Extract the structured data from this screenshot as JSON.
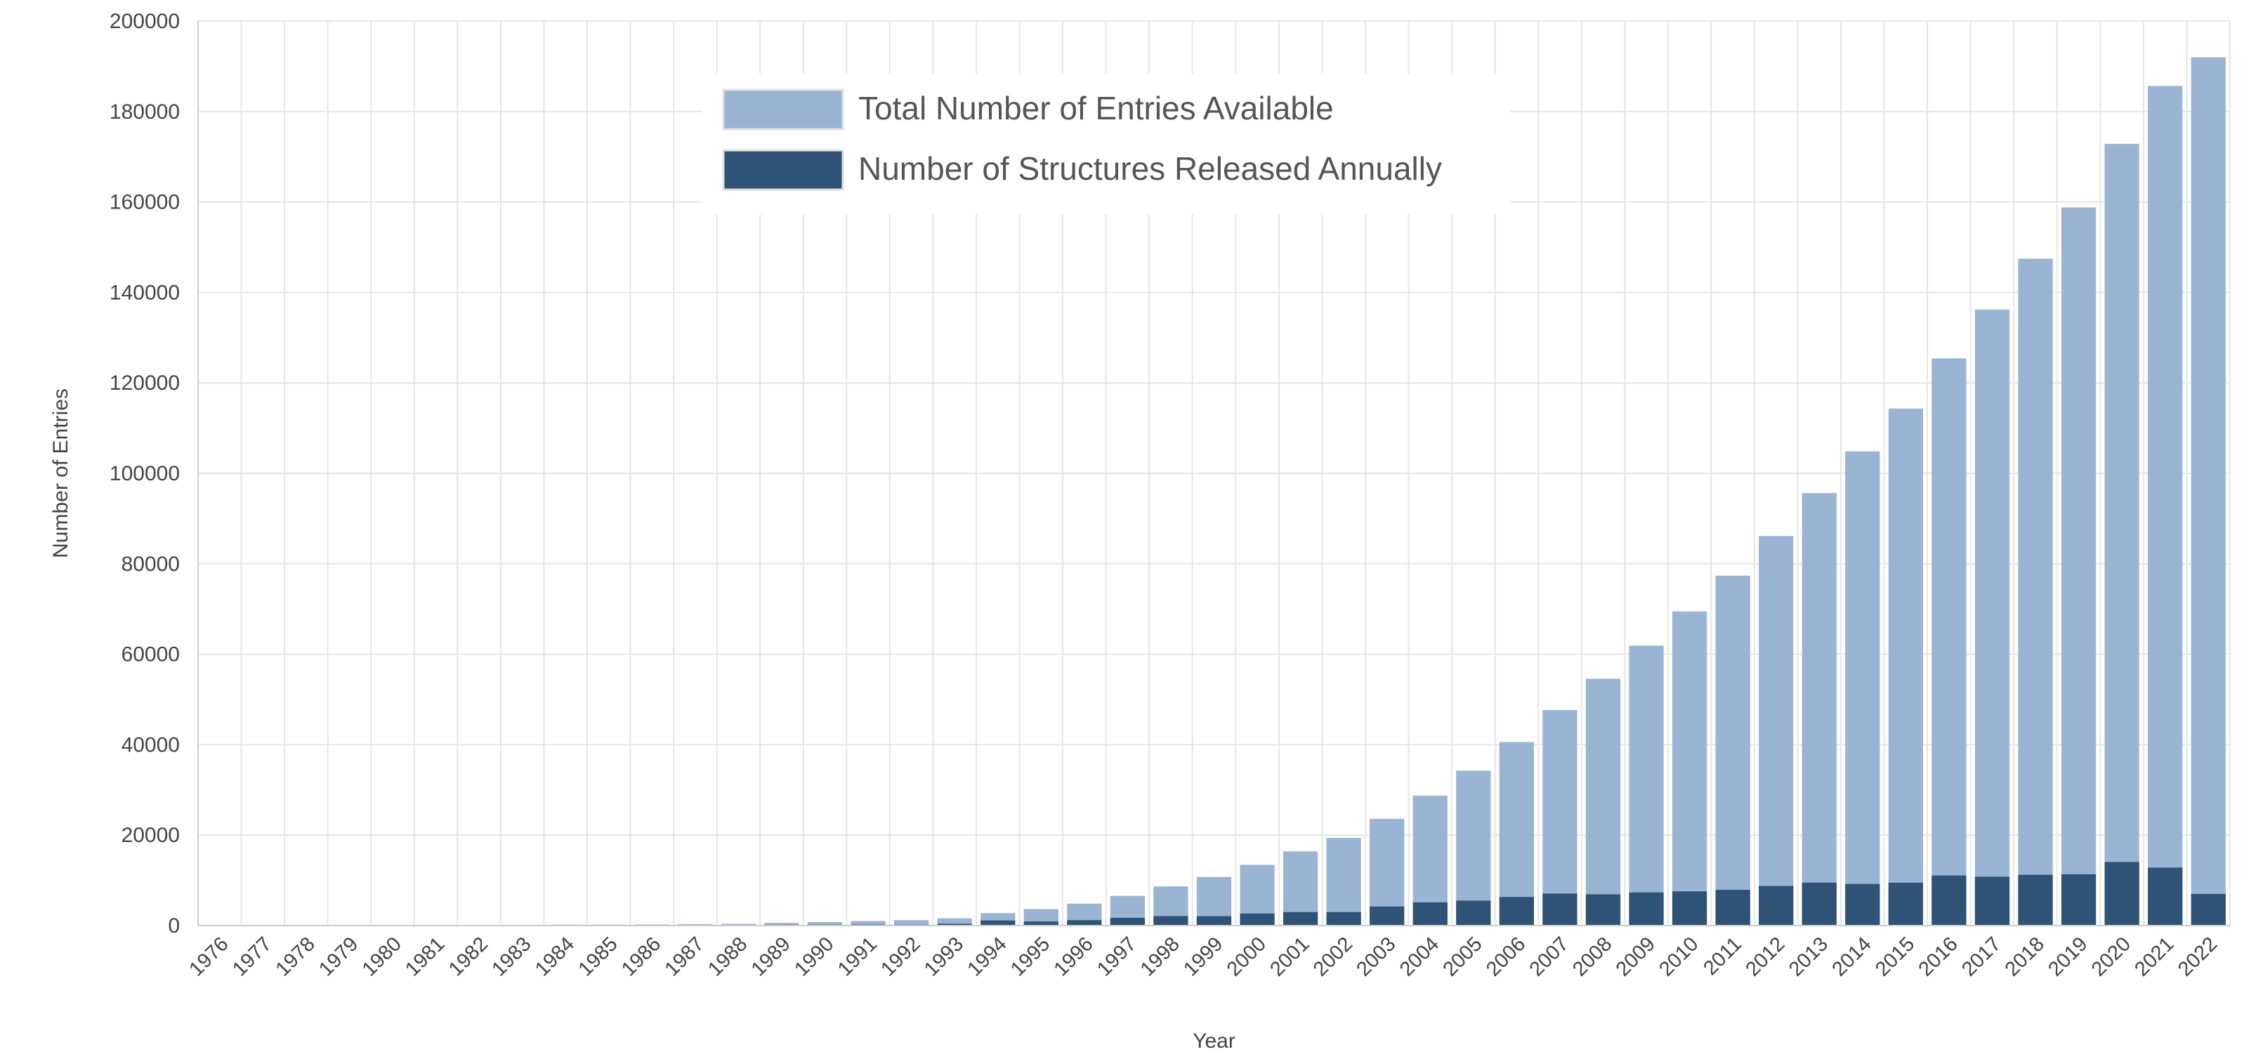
{
  "chart_data": {
    "type": "bar",
    "title": "",
    "xlabel": "Year",
    "ylabel": "Number of Entries",
    "ylim": [
      0,
      200000
    ],
    "yticks": [
      0,
      20000,
      40000,
      60000,
      80000,
      100000,
      120000,
      140000,
      160000,
      180000,
      200000
    ],
    "grid": true,
    "legend_position": "top-center",
    "categories": [
      "1976",
      "1977",
      "1978",
      "1979",
      "1980",
      "1981",
      "1982",
      "1983",
      "1984",
      "1985",
      "1986",
      "1987",
      "1988",
      "1989",
      "1990",
      "1991",
      "1992",
      "1993",
      "1994",
      "1995",
      "1996",
      "1997",
      "1998",
      "1999",
      "2000",
      "2001",
      "2002",
      "2003",
      "2004",
      "2005",
      "2006",
      "2007",
      "2008",
      "2009",
      "2010",
      "2011",
      "2012",
      "2013",
      "2014",
      "2015",
      "2016",
      "2017",
      "2018",
      "2019",
      "2020",
      "2021",
      "2022"
    ],
    "series": [
      {
        "name": "Total Number of Entries Available",
        "color": "#9ab4d4",
        "values": [
          13,
          36,
          56,
          69,
          80,
          100,
          126,
          161,
          196,
          213,
          249,
          327,
          388,
          578,
          776,
          1006,
          1202,
          1614,
          2748,
          3651,
          4851,
          6562,
          8659,
          10746,
          13425,
          16407,
          19388,
          23605,
          28741,
          34258,
          40583,
          47658,
          54572,
          61903,
          69468,
          77367,
          86138,
          95640,
          104851,
          114333,
          125407,
          136224,
          147452,
          158792,
          172847,
          185651,
          192000
        ]
      },
      {
        "name": "Number of Structures Released Annually",
        "color": "#2f5376",
        "values": [
          13,
          23,
          20,
          13,
          11,
          20,
          26,
          35,
          35,
          17,
          36,
          78,
          61,
          190,
          198,
          230,
          196,
          412,
          1134,
          903,
          1200,
          1711,
          2097,
          2087,
          2679,
          2982,
          2981,
          4217,
          5136,
          5517,
          6325,
          7075,
          6914,
          7331,
          7565,
          7899,
          8771,
          9502,
          9211,
          9482,
          11074,
          10817,
          11228,
          11340,
          14055,
          12804,
          7000
        ]
      }
    ]
  }
}
